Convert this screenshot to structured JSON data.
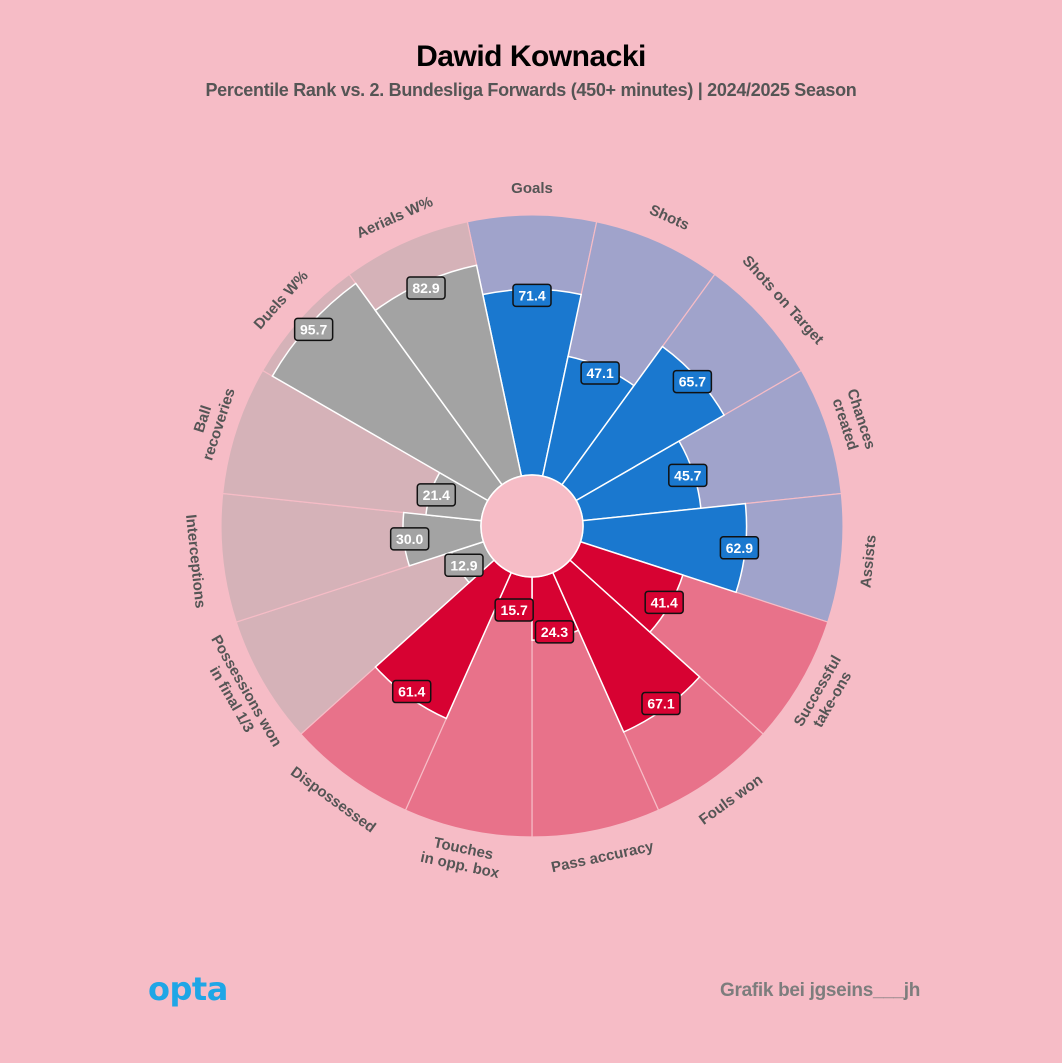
{
  "header": {
    "title": "Dawid Kownacki",
    "subtitle": "Percentile Rank vs. 2. Bundesliga Forwards (450+ minutes) | 2024/2025 Season"
  },
  "footer": {
    "logo": "opta",
    "credit": "Grafik bei jgseins___jh"
  },
  "colors": {
    "background": "#f6bcc6",
    "attacking": "#1a78cf",
    "attacking_bg": "#a0a3cb",
    "defending": "#a3a3a3",
    "defending_bg": "#d5b2b8",
    "possession": "#d70232",
    "possession_bg": "#e8728a",
    "value_box_attacking": "#1a78cf",
    "value_box_defending": "#a3a3a3",
    "value_box_possession": "#d70232"
  },
  "chart_data": {
    "type": "pie",
    "subtype": "radial-percentile (pizza)",
    "range": [
      0,
      100
    ],
    "categories": [
      {
        "label": "Goals",
        "value": 71.4,
        "group": "attacking"
      },
      {
        "label": "Shots",
        "value": 47.1,
        "group": "attacking"
      },
      {
        "label": "Shots on Target",
        "value": 65.7,
        "group": "attacking"
      },
      {
        "label": "Chances created",
        "value": 45.7,
        "group": "attacking"
      },
      {
        "label": "Assists",
        "value": 62.9,
        "group": "attacking"
      },
      {
        "label": "Successful take-ons",
        "value": 41.4,
        "group": "possession"
      },
      {
        "label": "Fouls won",
        "value": 67.1,
        "group": "possession"
      },
      {
        "label": "Pass accuracy",
        "value": 24.3,
        "group": "possession"
      },
      {
        "label": "Touches in opp. box",
        "value": 15.7,
        "group": "possession"
      },
      {
        "label": "Dispossessed",
        "value": 61.4,
        "group": "possession"
      },
      {
        "label": "Possessions won in final 1/3",
        "value": 12.9,
        "group": "defending"
      },
      {
        "label": "Interceptions",
        "value": 30.0,
        "group": "defending"
      },
      {
        "label": "Ball recoveries",
        "value": 21.4,
        "group": "defending"
      },
      {
        "label": "Duels W%",
        "value": 95.7,
        "group": "defending"
      },
      {
        "label": "Aerials W%",
        "value": 82.9,
        "group": "defending"
      }
    ],
    "label_lines": [
      [
        "Goals"
      ],
      [
        "Shots"
      ],
      [
        "Shots on Target"
      ],
      [
        "Chances",
        "created"
      ],
      [
        "Assists"
      ],
      [
        "Successful",
        "take-ons"
      ],
      [
        "Fouls won"
      ],
      [
        "Pass accuracy"
      ],
      [
        "Touches",
        "in opp. box"
      ],
      [
        "Dispossessed"
      ],
      [
        "Possessions won",
        "in final 1/3"
      ],
      [
        "Interceptions"
      ],
      [
        "Ball",
        "recoveries"
      ],
      [
        "Duels W%"
      ],
      [
        "Aerials W%"
      ]
    ],
    "value_labels": [
      "71.4",
      "47.1",
      "65.7",
      "45.7",
      "62.9",
      "41.4",
      "67.1",
      "24.3",
      "15.7",
      "61.4",
      "12.9",
      "30.0",
      "21.4",
      "95.7",
      "82.9"
    ]
  }
}
